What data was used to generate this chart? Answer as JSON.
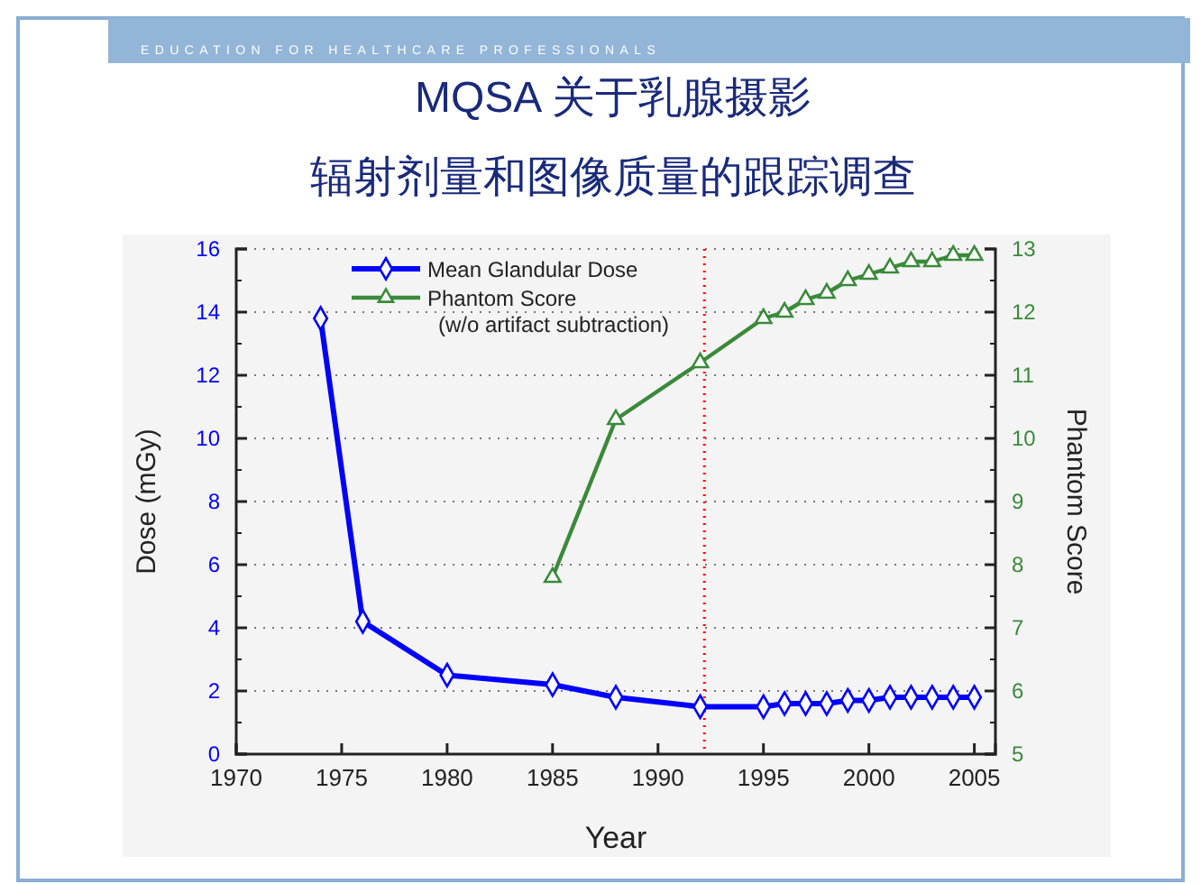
{
  "chart_data": {
    "type": "line",
    "title": "MQSA 关于乳腺摄影",
    "subtitle": "辐射剂量和图像质量的跟踪调查",
    "xlabel": "Year",
    "ylabel": "Dose (mGy)",
    "y2label": "Phantom Score",
    "annotations": [
      "EDUCATION FOR HEALTHCARE PROFESSIONALS",
      "(w/o artifact subtraction)"
    ],
    "series": [
      {
        "name": "Mean Glandular Dose",
        "color": "#0000ff",
        "marker": "diamond",
        "x": [
          1974,
          1976,
          1980,
          1985,
          1988,
          1992,
          1995,
          1996,
          1997,
          1998,
          1999,
          2000,
          2001,
          2002,
          2003,
          2004,
          2005
        ],
        "values": [
          13.8,
          4.2,
          2.5,
          2.2,
          1.8,
          1.5,
          1.5,
          1.6,
          1.6,
          1.6,
          1.7,
          1.7,
          1.8,
          1.8,
          1.8,
          1.8,
          1.8
        ]
      },
      {
        "name": "Phantom Score",
        "color": "#3a8a3a",
        "marker": "triangle",
        "axis": "y2",
        "x": [
          1985,
          1988,
          1992,
          1995,
          1996,
          1997,
          1998,
          1999,
          2000,
          2001,
          2002,
          2003,
          2004,
          2005
        ],
        "values": [
          7.8,
          10.3,
          11.2,
          11.9,
          12.0,
          12.2,
          12.3,
          12.5,
          12.6,
          12.7,
          12.8,
          12.8,
          12.9,
          12.9
        ]
      }
    ],
    "xlim": [
      1970,
      2006
    ],
    "xticks": [
      1970,
      1975,
      1980,
      1985,
      1990,
      1995,
      2000,
      2005
    ],
    "ylim": [
      0,
      16
    ],
    "yticks": [
      0,
      2,
      4,
      6,
      8,
      10,
      12,
      14,
      16
    ],
    "y2lim": [
      5,
      13
    ],
    "y2ticks": [
      5,
      6,
      7,
      8,
      9,
      10,
      11,
      12,
      13
    ],
    "ref_lines": [
      {
        "axis": "x",
        "value": 1992.2,
        "color": "#ff0000",
        "line_style": "dotted"
      }
    ],
    "grid": "y",
    "legend": "top left",
    "line_style": "solid"
  }
}
